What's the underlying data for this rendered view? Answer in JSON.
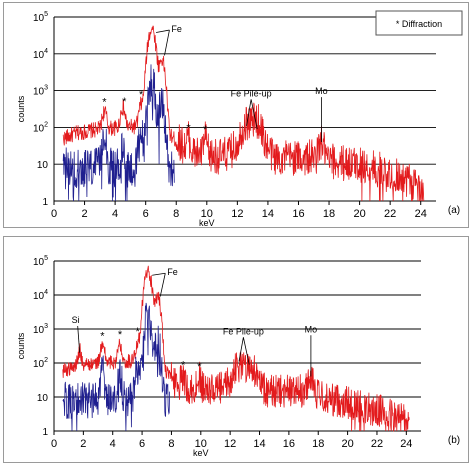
{
  "chart_data": [
    {
      "type": "line",
      "panel_label": "(a)",
      "xlabel": "keV",
      "ylabel": "counts",
      "yscale": "log",
      "xlim": [
        0,
        25
      ],
      "ylim": [
        1,
        100000
      ],
      "x_ticks": [
        "0",
        "2",
        "4",
        "6",
        "8",
        "10",
        "12",
        "14",
        "16",
        "18",
        "20",
        "22",
        "24"
      ],
      "y_ticks": [
        {
          "base": "1",
          "exp": ""
        },
        {
          "base": "10",
          "exp": ""
        },
        {
          "base": "10",
          "exp": "2"
        },
        {
          "base": "10",
          "exp": "3"
        },
        {
          "base": "10",
          "exp": "4"
        },
        {
          "base": "10",
          "exp": "5"
        }
      ],
      "grid": "horizontal",
      "legend_text": "* Diffraction",
      "series": [
        {
          "color": "#e31a1c",
          "x_range": [
            0.6,
            24.2
          ],
          "baseline": 100,
          "peaks": [
            [
              3.3,
              180,
              0.12
            ],
            [
              4.5,
              250,
              0.12
            ],
            [
              5.7,
              300,
              0.12
            ],
            [
              6.4,
              50000,
              0.18
            ],
            [
              7.06,
              7000,
              0.15
            ],
            [
              8.8,
              30,
              0.1
            ],
            [
              9.9,
              30,
              0.1
            ],
            [
              12.7,
              100,
              0.35
            ],
            [
              13.3,
              90,
              0.25
            ],
            [
              17.5,
              25,
              0.15
            ]
          ],
          "profile": [
            [
              0.6,
              50
            ],
            [
              1.5,
              70
            ],
            [
              3,
              90
            ],
            [
              6,
              110
            ],
            [
              7.5,
              60
            ],
            [
              8.2,
              40
            ],
            [
              9,
              20
            ],
            [
              11,
              16
            ],
            [
              12.2,
              30
            ],
            [
              13.5,
              40
            ],
            [
              14.5,
              15
            ],
            [
              16,
              15
            ],
            [
              17,
              15
            ],
            [
              18,
              12
            ],
            [
              20,
              10
            ],
            [
              22,
              6
            ],
            [
              23,
              4
            ],
            [
              24.2,
              2
            ]
          ]
        },
        {
          "color": "#1f1f8f",
          "x_range": [
            0.6,
            7.9
          ],
          "baseline": 8,
          "peaks": [
            [
              3.3,
              80,
              0.1
            ],
            [
              4.5,
              15,
              0.1
            ],
            [
              5.7,
              60,
              0.12
            ],
            [
              6.4,
              2000,
              0.16
            ],
            [
              7.06,
              400,
              0.14
            ]
          ],
          "profile": [
            [
              0.6,
              8
            ],
            [
              7.9,
              8
            ]
          ]
        }
      ],
      "annotations": [
        {
          "text": "Fe",
          "x": 6.9,
          "y": 50000
        },
        {
          "text": "Fe Pile-up",
          "x": 12.9,
          "y": 700
        },
        {
          "text": "Mo",
          "x": 17.5,
          "y": 800
        }
      ],
      "star_positions": [
        3.3,
        4.6,
        5.7,
        8.8,
        9.9
      ]
    },
    {
      "type": "line",
      "panel_label": "(b)",
      "xlabel": "keV",
      "ylabel": "counts",
      "yscale": "log",
      "xlim": [
        0,
        25
      ],
      "ylim": [
        1,
        100000
      ],
      "x_ticks": [
        "0",
        "2",
        "4",
        "6",
        "8",
        "10",
        "12",
        "14",
        "16",
        "18",
        "20",
        "22",
        "24"
      ],
      "y_ticks": [
        {
          "base": "1",
          "exp": ""
        },
        {
          "base": "10",
          "exp": ""
        },
        {
          "base": "10",
          "exp": "2"
        },
        {
          "base": "10",
          "exp": "3"
        },
        {
          "base": "10",
          "exp": "4"
        },
        {
          "base": "10",
          "exp": "5"
        }
      ],
      "grid": "horizontal",
      "series": [
        {
          "color": "#e31a1c",
          "x_range": [
            0.6,
            24.2
          ],
          "baseline": 100,
          "peaks": [
            [
              1.75,
              150,
              0.1
            ],
            [
              3.3,
              220,
              0.12
            ],
            [
              4.5,
              250,
              0.12
            ],
            [
              5.7,
              300,
              0.12
            ],
            [
              6.4,
              50000,
              0.18
            ],
            [
              7.06,
              9000,
              0.15
            ],
            [
              8.8,
              25,
              0.1
            ],
            [
              9.9,
              25,
              0.1
            ],
            [
              12.7,
              60,
              0.35
            ],
            [
              13.4,
              45,
              0.25
            ],
            [
              17.5,
              35,
              0.15
            ]
          ],
          "profile": [
            [
              0.6,
              60
            ],
            [
              1.5,
              80
            ],
            [
              3,
              100
            ],
            [
              6,
              120
            ],
            [
              7.5,
              60
            ],
            [
              8.2,
              30
            ],
            [
              9,
              18
            ],
            [
              11,
              15
            ],
            [
              12.2,
              25
            ],
            [
              13.5,
              35
            ],
            [
              14.5,
              15
            ],
            [
              16,
              15
            ],
            [
              17,
              15
            ],
            [
              18,
              10
            ],
            [
              20,
              7
            ],
            [
              22,
              4
            ],
            [
              23,
              3
            ],
            [
              24.2,
              2
            ]
          ]
        },
        {
          "color": "#1f1f8f",
          "x_range": [
            0.6,
            7.9
          ],
          "baseline": 8,
          "peaks": [
            [
              3.3,
              60,
              0.1
            ],
            [
              4.5,
              40,
              0.1
            ],
            [
              5.7,
              60,
              0.12
            ],
            [
              6.4,
              3000,
              0.16
            ],
            [
              7.06,
              400,
              0.14
            ]
          ],
          "profile": [
            [
              0.6,
              8
            ],
            [
              7.9,
              8
            ]
          ]
        }
      ],
      "annotations": [
        {
          "text": "Si",
          "x": 1.75,
          "y": 1500
        },
        {
          "text": "Fe",
          "x": 6.9,
          "y": 50000
        },
        {
          "text": "Fe Pile-up",
          "x": 12.9,
          "y": 700
        },
        {
          "text": "Mo",
          "x": 17.5,
          "y": 800
        }
      ],
      "star_positions": [
        3.3,
        4.5,
        5.7,
        8.8,
        9.9
      ]
    }
  ]
}
